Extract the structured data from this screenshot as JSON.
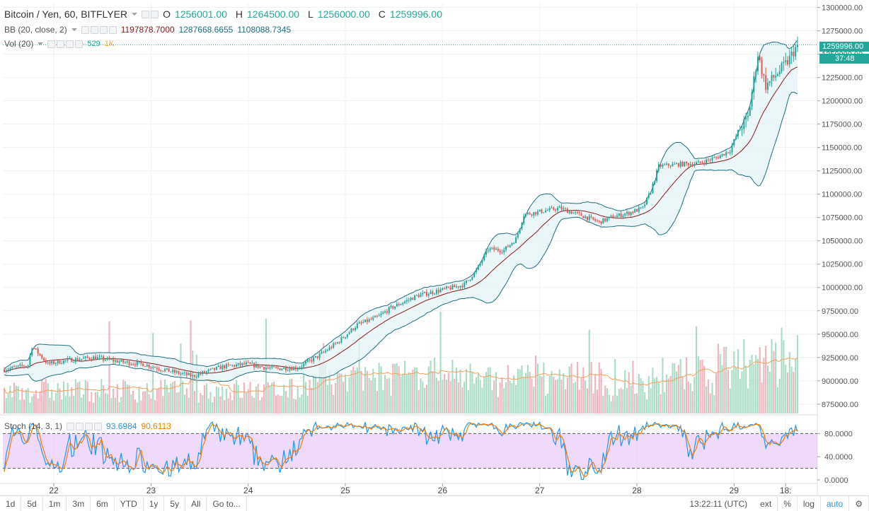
{
  "header": {
    "symbol_title": "Bitcoin / Yen, 60, BITFLYER",
    "open_label": "O",
    "open_value": "1256001.00",
    "high_label": "H",
    "high_value": "1264500.00",
    "low_label": "L",
    "low_value": "1256000.00",
    "close_label": "C",
    "close_value": "1259996.00"
  },
  "indicators": {
    "bb": {
      "label": "BB (20, close, 2)",
      "basis": "1197878.7000",
      "upper": "1287668.6655",
      "lower": "1108088.7345"
    },
    "vol": {
      "label": "Vol (20)",
      "value": "529",
      "ma": "1K"
    },
    "stoch": {
      "label": "Stoch (14, 3, 1)",
      "k": "93.6984",
      "d": "90.6113"
    }
  },
  "price_tags": {
    "last_price": "1259996.00",
    "countdown": "37:48"
  },
  "toolbar": {
    "ranges": [
      "1d",
      "5d",
      "1m",
      "3m",
      "6m",
      "YTD",
      "1y",
      "5y",
      "All",
      "Go to..."
    ],
    "time": "13:22:11 (UTC)",
    "ext": "ext",
    "percent": "%",
    "log": "log",
    "auto": "auto"
  },
  "colors": {
    "up": "#26a69a",
    "down": "#ef5350",
    "bb_basis": "#8b1a1a",
    "bb_band": "#1f6f7f",
    "bb_fill": "#e6f4f6",
    "stoch_k": "#2196f3",
    "stoch_d": "#f57c00",
    "stoch_bg": "#e9cdfb",
    "vol_up": "#a8dcc5",
    "vol_down": "#f3b3bd"
  },
  "chart_data": {
    "type": "candlestick",
    "x_tick_labels": [
      "22",
      "23",
      "24",
      "25",
      "26",
      "27",
      "28",
      "29",
      "18:"
    ],
    "y_tick_labels": [
      "1300000.00",
      "1275000.00",
      "1250000.00",
      "1225000.00",
      "1200000.00",
      "1175000.00",
      "1150000.00",
      "1125000.00",
      "1100000.00",
      "1075000.00",
      "1050000.00",
      "1025000.00",
      "1000000.00",
      "975000.00",
      "950000.00",
      "925000.00",
      "900000.00",
      "875000.00"
    ],
    "ylim": [
      865000,
      1305000
    ],
    "stoch_tick_labels": [
      "80.0000",
      "40.0000",
      "0.0000"
    ],
    "stoch_ylim": [
      0,
      100
    ],
    "stoch_bands": [
      20,
      80
    ],
    "price_path": [
      [
        0,
        912000
      ],
      [
        12,
        917000
      ],
      [
        14,
        937000
      ],
      [
        22,
        918000
      ],
      [
        32,
        922000
      ],
      [
        45,
        925000
      ],
      [
        60,
        920000
      ],
      [
        70,
        918000
      ],
      [
        80,
        912000
      ],
      [
        95,
        905000
      ],
      [
        110,
        915000
      ],
      [
        122,
        918000
      ],
      [
        135,
        913000
      ],
      [
        148,
        914000
      ],
      [
        158,
        926000
      ],
      [
        168,
        941000
      ],
      [
        178,
        960000
      ],
      [
        188,
        968000
      ],
      [
        195,
        978000
      ],
      [
        208,
        991000
      ],
      [
        222,
        998000
      ],
      [
        232,
        1003000
      ],
      [
        238,
        1018000
      ],
      [
        244,
        1041000
      ],
      [
        252,
        1040000
      ],
      [
        258,
        1052000
      ],
      [
        262,
        1078000
      ],
      [
        272,
        1082000
      ],
      [
        280,
        1085000
      ],
      [
        290,
        1078000
      ],
      [
        300,
        1070000
      ],
      [
        306,
        1075000
      ],
      [
        315,
        1080000
      ],
      [
        322,
        1085000
      ],
      [
        326,
        1103000
      ],
      [
        330,
        1130000
      ],
      [
        340,
        1132000
      ],
      [
        350,
        1133000
      ],
      [
        360,
        1140000
      ],
      [
        366,
        1147000
      ],
      [
        370,
        1167000
      ],
      [
        375,
        1182000
      ],
      [
        380,
        1250000
      ],
      [
        384,
        1216000
      ],
      [
        388,
        1225000
      ],
      [
        395,
        1242000
      ],
      [
        400,
        1260000
      ]
    ]
  }
}
